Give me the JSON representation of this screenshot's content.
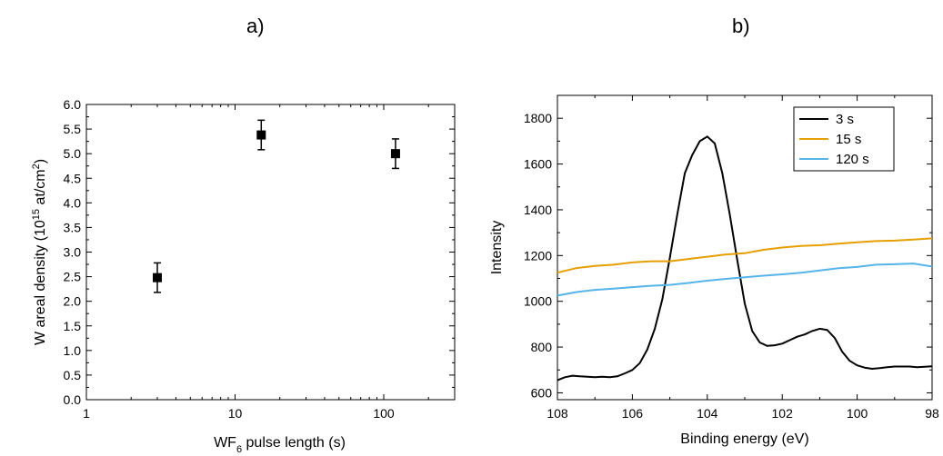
{
  "panels": {
    "a": "a)",
    "b": "b)"
  },
  "chart_data": [
    {
      "type": "scatter",
      "title": "a)",
      "xlabel_parts": [
        "WF",
        "6",
        " pulse length (s)"
      ],
      "ylabel_parts": [
        "W areal density (10",
        "15",
        " at/cm",
        "2",
        ")"
      ],
      "x_scale": "log",
      "xlim": [
        1,
        300
      ],
      "ylim": [
        0.0,
        6.0
      ],
      "x_ticks": [
        1,
        10,
        100
      ],
      "x_tick_labels": [
        "1",
        "10",
        "100"
      ],
      "y_ticks": [
        0.0,
        0.5,
        1.0,
        1.5,
        2.0,
        2.5,
        3.0,
        3.5,
        4.0,
        4.5,
        5.0,
        5.5,
        6.0
      ],
      "y_tick_labels": [
        "0.0",
        "0.5",
        "1.0",
        "1.5",
        "2.0",
        "2.5",
        "3.0",
        "3.5",
        "4.0",
        "4.5",
        "5.0",
        "5.5",
        "6.0"
      ],
      "points": [
        {
          "x": 3,
          "y": 2.48,
          "err": 0.3
        },
        {
          "x": 15,
          "y": 5.38,
          "err": 0.3
        },
        {
          "x": 120,
          "y": 5.0,
          "err": 0.3
        }
      ],
      "marker_color": "#000000"
    },
    {
      "type": "line",
      "title": "b)",
      "xlabel": "Binding energy (eV)",
      "ylabel": "Intensity",
      "xlim": [
        108,
        98
      ],
      "x_reversed": true,
      "ylim": [
        570,
        1900
      ],
      "x_ticks": [
        108,
        106,
        104,
        102,
        100,
        98
      ],
      "x_tick_labels": [
        "108",
        "106",
        "104",
        "102",
        "100",
        "98"
      ],
      "y_ticks": [
        600,
        800,
        1000,
        1200,
        1400,
        1600,
        1800
      ],
      "y_tick_labels": [
        "600",
        "800",
        "1000",
        "1200",
        "1400",
        "1600",
        "1800"
      ],
      "legend_position": "top-right",
      "series": [
        {
          "name": "3 s",
          "color": "#000000",
          "x": [
            108.0,
            107.8,
            107.6,
            107.4,
            107.2,
            107.0,
            106.8,
            106.6,
            106.4,
            106.2,
            106.0,
            105.8,
            105.6,
            105.4,
            105.2,
            105.0,
            104.8,
            104.6,
            104.4,
            104.2,
            104.0,
            103.8,
            103.6,
            103.4,
            103.2,
            103.0,
            102.8,
            102.6,
            102.4,
            102.2,
            102.0,
            101.8,
            101.6,
            101.4,
            101.2,
            101.0,
            100.8,
            100.6,
            100.4,
            100.2,
            100.0,
            99.8,
            99.6,
            99.4,
            99.2,
            99.0,
            98.8,
            98.6,
            98.4,
            98.2,
            98.0
          ],
          "y": [
            655,
            668,
            675,
            672,
            670,
            668,
            670,
            668,
            672,
            685,
            700,
            730,
            790,
            880,
            1010,
            1190,
            1380,
            1560,
            1640,
            1700,
            1720,
            1690,
            1560,
            1380,
            1180,
            990,
            870,
            820,
            805,
            808,
            815,
            830,
            845,
            855,
            870,
            880,
            875,
            840,
            780,
            740,
            720,
            710,
            705,
            708,
            712,
            715,
            715,
            715,
            712,
            714,
            716
          ]
        },
        {
          "name": "15 s",
          "color": "#E69F00",
          "x": [
            108.0,
            107.5,
            107.0,
            106.5,
            106.0,
            105.5,
            105.0,
            104.5,
            104.0,
            103.5,
            103.0,
            102.5,
            102.0,
            101.5,
            101.0,
            100.5,
            100.0,
            99.5,
            99.0,
            98.5,
            98.0
          ],
          "y": [
            1125,
            1145,
            1155,
            1160,
            1170,
            1175,
            1175,
            1185,
            1195,
            1205,
            1210,
            1225,
            1235,
            1242,
            1245,
            1252,
            1258,
            1263,
            1265,
            1270,
            1275
          ]
        },
        {
          "name": "120 s",
          "color": "#56B4E9",
          "x": [
            108.0,
            107.5,
            107.0,
            106.5,
            106.0,
            105.5,
            105.0,
            104.5,
            104.0,
            103.5,
            103.0,
            102.5,
            102.0,
            101.5,
            101.0,
            100.5,
            100.0,
            99.5,
            99.0,
            98.5,
            98.0
          ],
          "y": [
            1025,
            1040,
            1050,
            1055,
            1062,
            1068,
            1072,
            1080,
            1090,
            1098,
            1105,
            1112,
            1118,
            1125,
            1135,
            1145,
            1150,
            1160,
            1162,
            1165,
            1152
          ]
        }
      ]
    }
  ]
}
